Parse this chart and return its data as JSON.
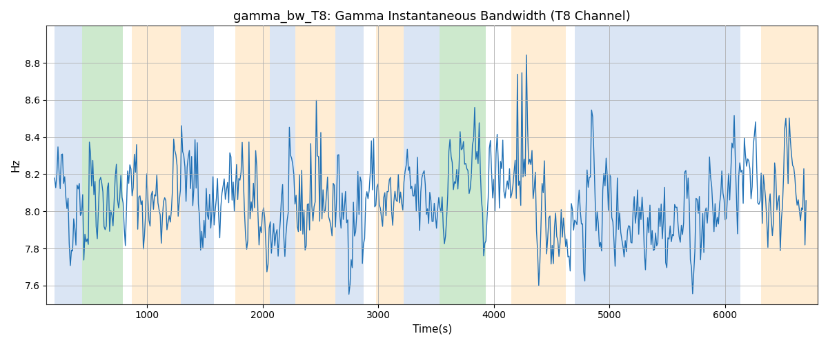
{
  "title": "gamma_bw_T8: Gamma Instantaneous Bandwidth (T8 Channel)",
  "xlabel": "Time(s)",
  "ylabel": "Hz",
  "ylim": [
    7.5,
    9.0
  ],
  "xlim": [
    130,
    6800
  ],
  "background_bands": [
    {
      "xmin": 200,
      "xmax": 440,
      "color": "#aec6e8",
      "alpha": 0.45
    },
    {
      "xmin": 440,
      "xmax": 790,
      "color": "#90d090",
      "alpha": 0.45
    },
    {
      "xmin": 870,
      "xmax": 1290,
      "color": "#ffd9a0",
      "alpha": 0.45
    },
    {
      "xmin": 1290,
      "xmax": 1580,
      "color": "#aec6e8",
      "alpha": 0.45
    },
    {
      "xmin": 1760,
      "xmax": 2060,
      "color": "#ffd9a0",
      "alpha": 0.45
    },
    {
      "xmin": 2060,
      "xmax": 2280,
      "color": "#aec6e8",
      "alpha": 0.45
    },
    {
      "xmin": 2280,
      "xmax": 2630,
      "color": "#ffd9a0",
      "alpha": 0.45
    },
    {
      "xmin": 2630,
      "xmax": 2870,
      "color": "#aec6e8",
      "alpha": 0.45
    },
    {
      "xmin": 2980,
      "xmax": 3220,
      "color": "#ffd9a0",
      "alpha": 0.45
    },
    {
      "xmin": 3220,
      "xmax": 3530,
      "color": "#aec6e8",
      "alpha": 0.45
    },
    {
      "xmin": 3530,
      "xmax": 3930,
      "color": "#90d090",
      "alpha": 0.45
    },
    {
      "xmin": 4150,
      "xmax": 4620,
      "color": "#ffd9a0",
      "alpha": 0.45
    },
    {
      "xmin": 4700,
      "xmax": 6130,
      "color": "#aec6e8",
      "alpha": 0.45
    },
    {
      "xmin": 6310,
      "xmax": 6800,
      "color": "#ffd9a0",
      "alpha": 0.45
    }
  ],
  "line_color": "#2171b5",
  "line_width": 1.0,
  "grid_color": "#b0b0b0",
  "title_fontsize": 13,
  "tick_fontsize": 10,
  "label_fontsize": 11,
  "random_seed": 42,
  "n_points": 670,
  "base_value": 8.05,
  "noise_std": 0.13
}
